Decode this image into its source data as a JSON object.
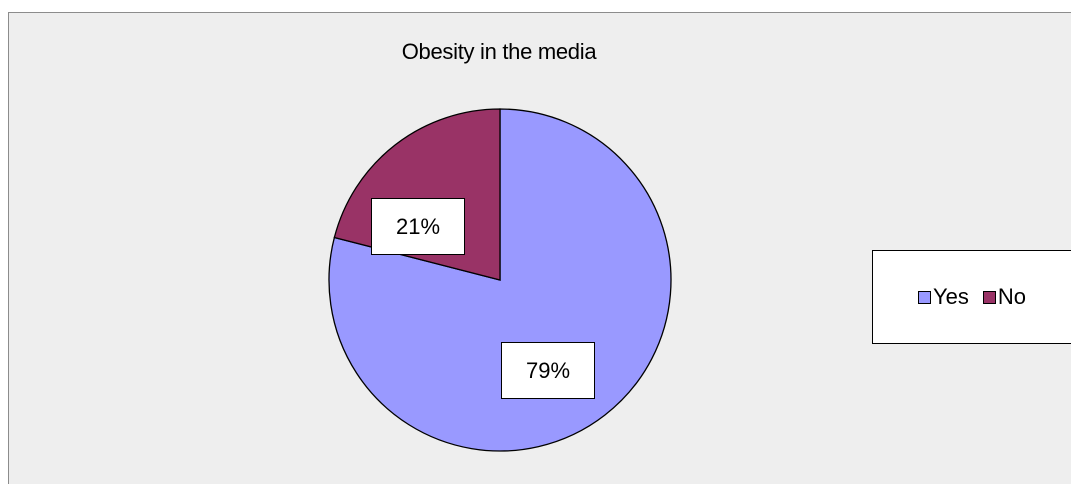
{
  "chart_data": {
    "type": "pie",
    "title": "Obesity in the media",
    "slices": [
      {
        "label": "Yes",
        "value": 79,
        "display": "79%",
        "color": "#9999ff"
      },
      {
        "label": "No",
        "value": 21,
        "display": "21%",
        "color": "#993366"
      }
    ],
    "legend_position": "right",
    "background": "#eeeeee"
  }
}
